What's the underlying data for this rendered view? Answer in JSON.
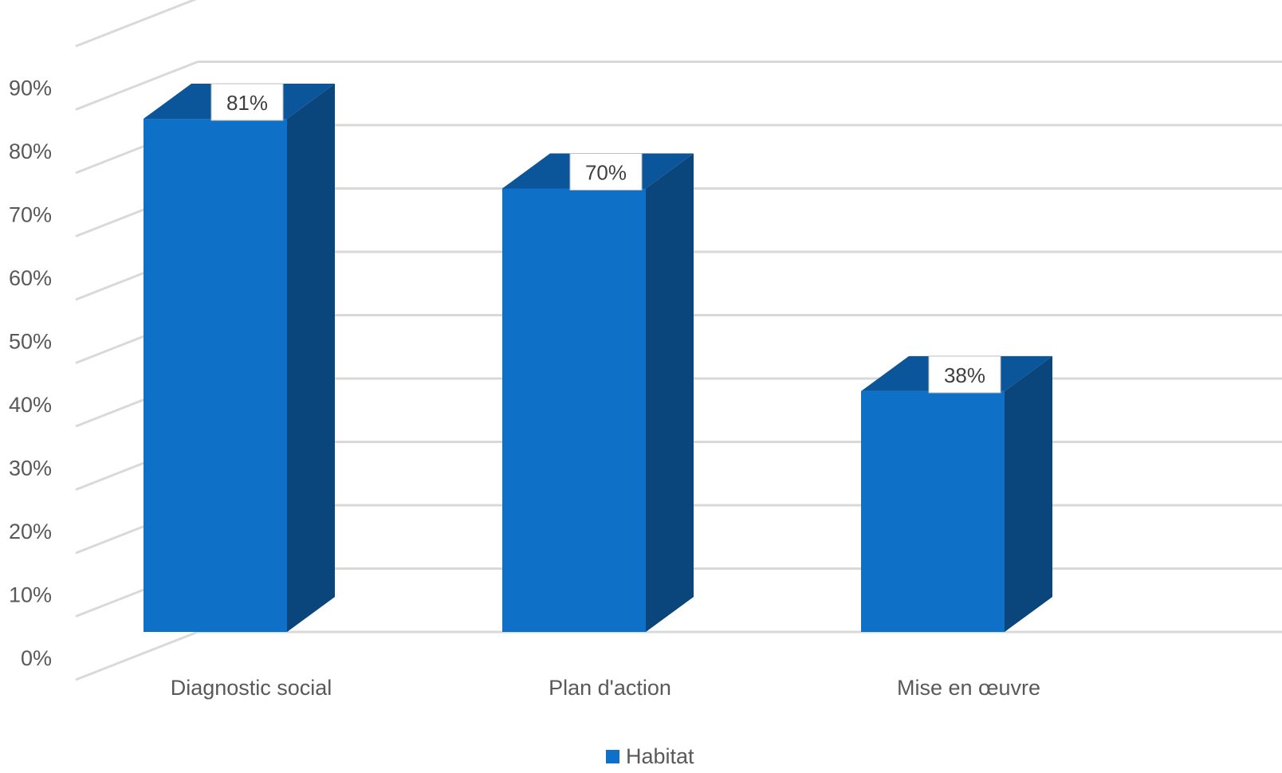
{
  "chart_data": {
    "type": "bar",
    "style": "3d-column",
    "categories": [
      "Diagnostic social",
      "Plan d'action",
      "Mise en œuvre"
    ],
    "series": [
      {
        "name": "Habitat",
        "values": [
          81,
          70,
          38
        ]
      }
    ],
    "data_labels": [
      "81%",
      "70%",
      "38%"
    ],
    "y_ticks": [
      "0%",
      "10%",
      "20%",
      "30%",
      "40%",
      "50%",
      "60%",
      "70%",
      "80%",
      "90%"
    ],
    "ylim": [
      0,
      100
    ],
    "grid": true,
    "legend_position": "bottom",
    "colors": {
      "bar_front": "#0E70C6",
      "bar_side": "#0A467C",
      "bar_top": "#0B559A",
      "grid": "#D9D9D9",
      "text": "#595959"
    }
  }
}
